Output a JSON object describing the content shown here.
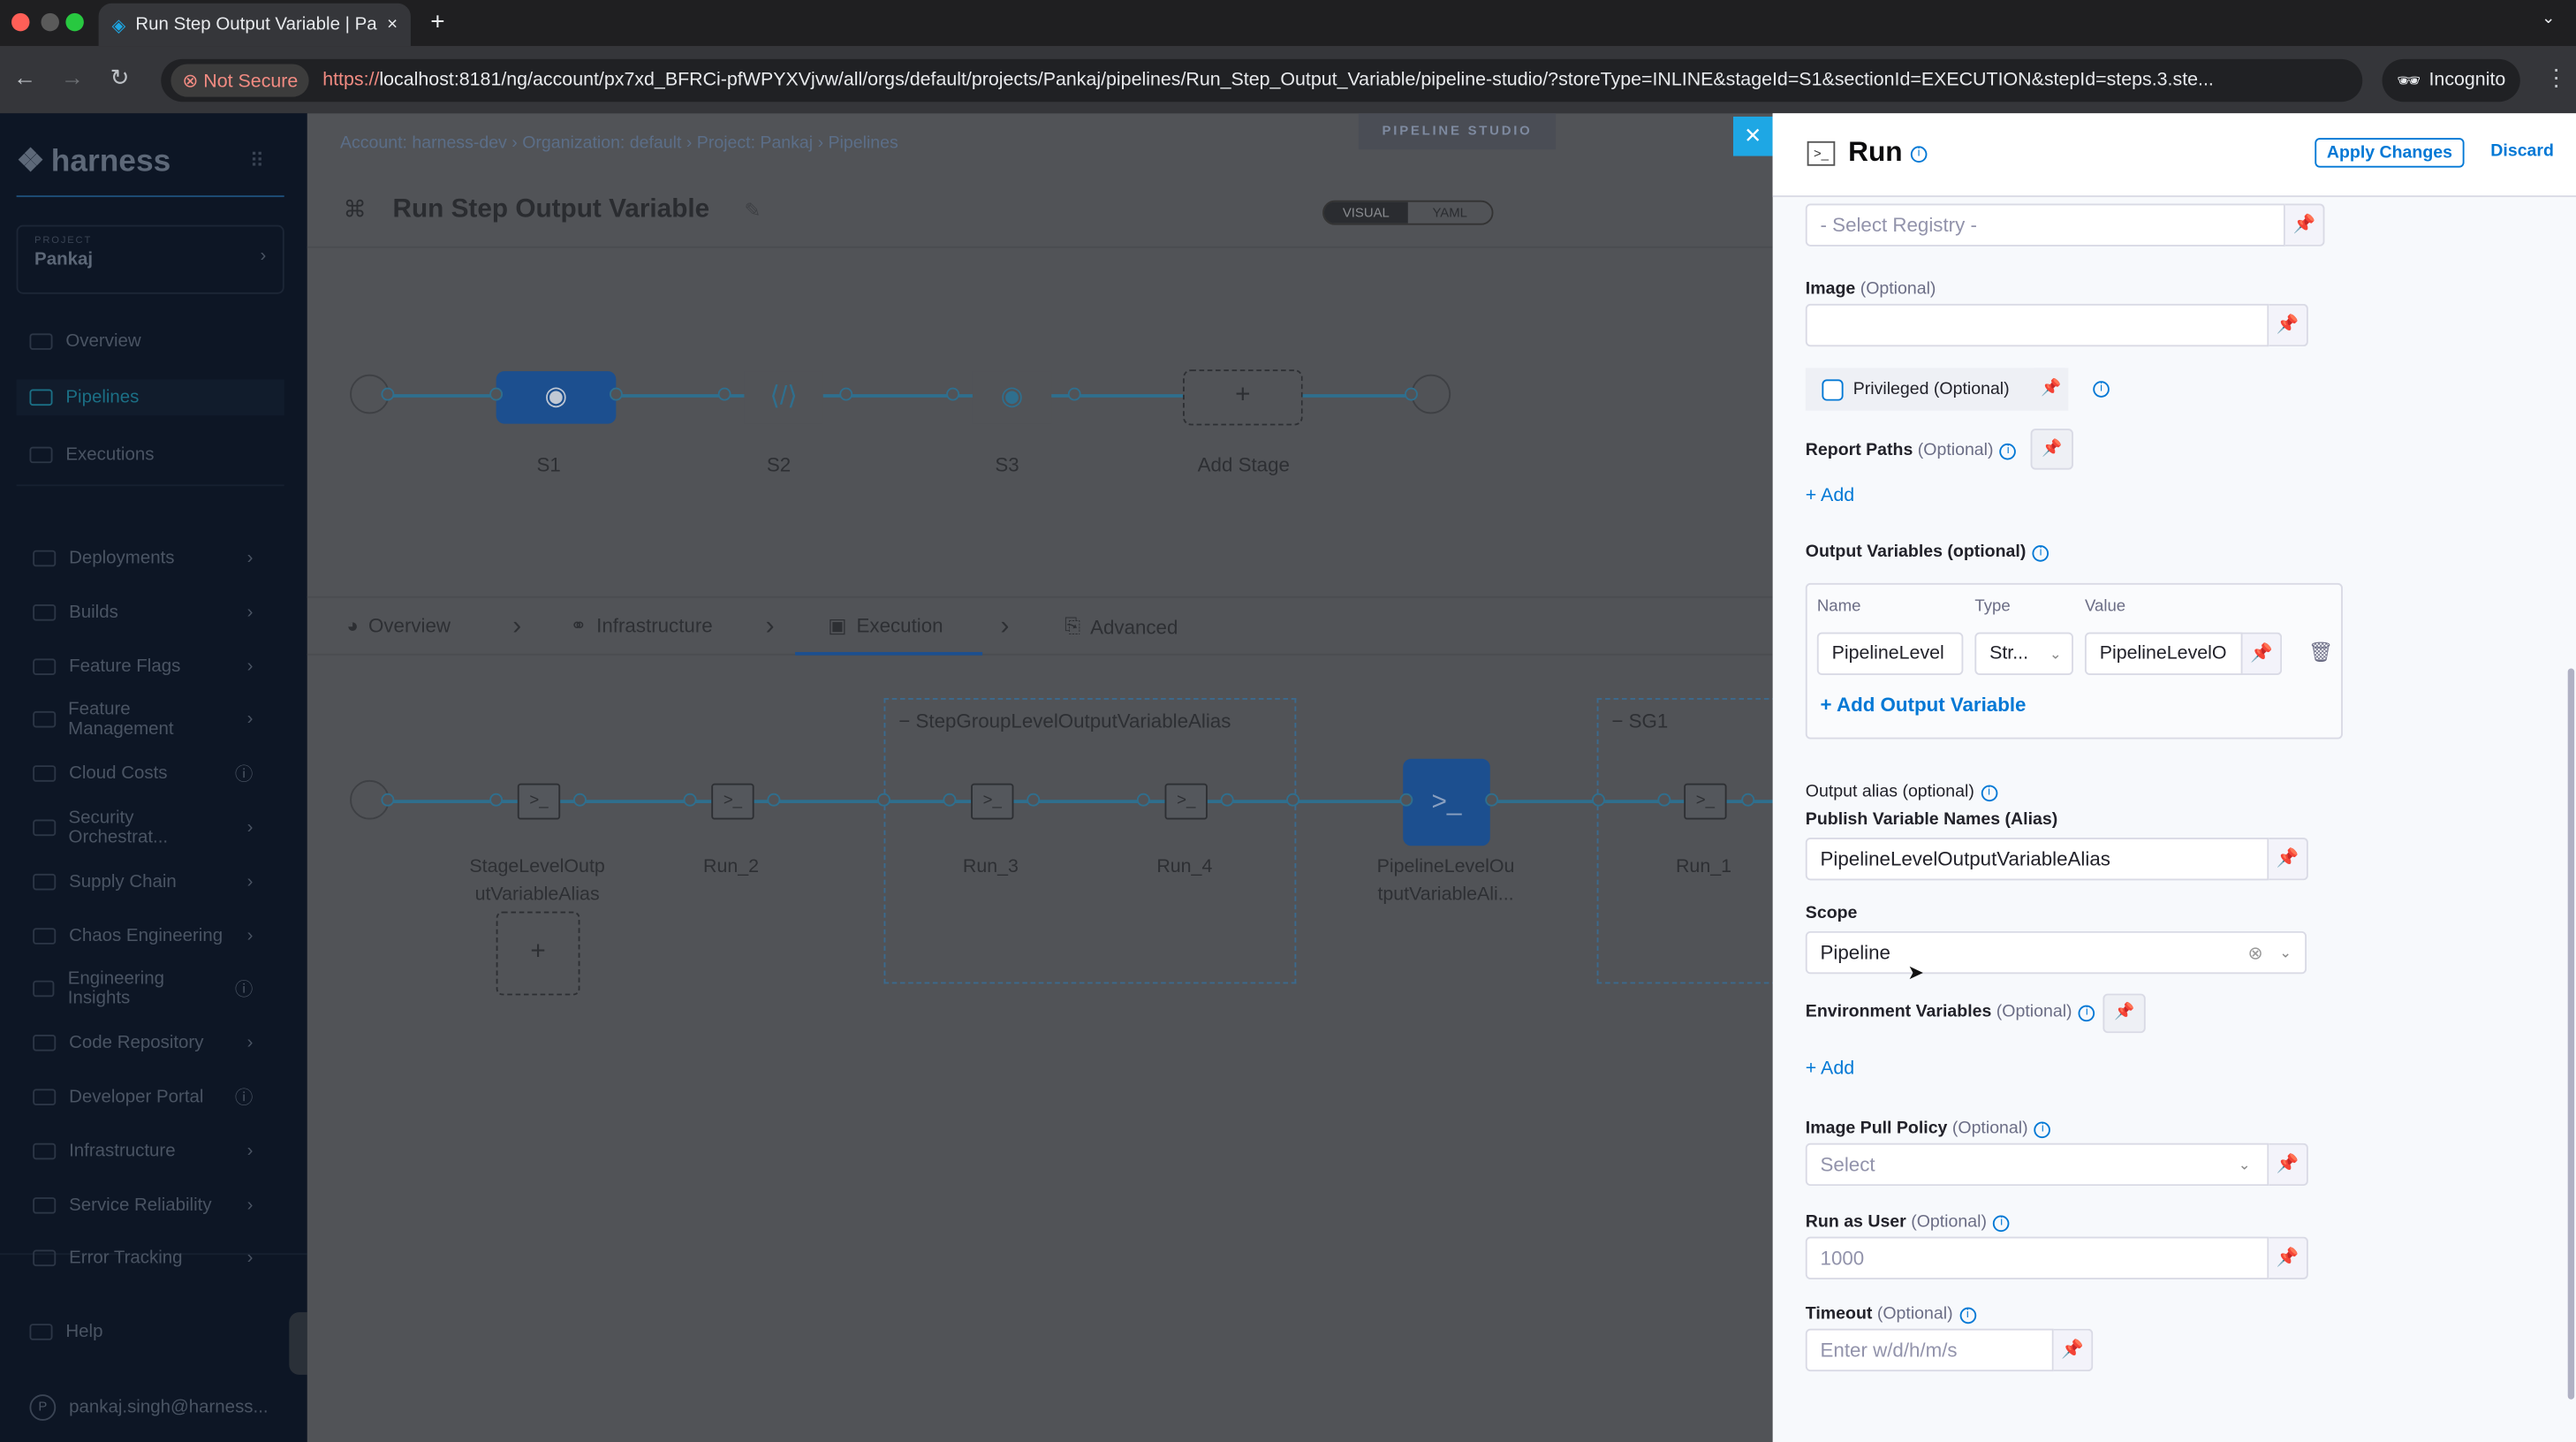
{
  "browser": {
    "tab_title": "Run Step Output Variable | Pa",
    "not_secure": "Not Secure",
    "url_scheme": "https://",
    "url_rest": "localhost:8181/ng/account/px7xd_BFRCi-pfWPYXVjvw/all/orgs/default/projects/Pankaj/pipelines/Run_Step_Output_Variable/pipeline-studio/?storeType=INLINE&stageId=S1&sectionId=EXECUTION&stepId=steps.3.ste...",
    "incognito": "Incognito"
  },
  "sidebar": {
    "logo": "harness",
    "project_label": "PROJECT",
    "project": "Pankaj",
    "top_items": [
      {
        "label": "Overview"
      },
      {
        "label": "Pipelines",
        "active": true
      },
      {
        "label": "Executions"
      }
    ],
    "modules": [
      {
        "label": "Deployments",
        "icon": "chevron"
      },
      {
        "label": "Builds",
        "icon": "chevron"
      },
      {
        "label": "Feature Flags",
        "icon": "chevron"
      },
      {
        "label": "Feature Management",
        "icon": "chevron"
      },
      {
        "label": "Cloud Costs",
        "icon": "info"
      },
      {
        "label": "Security Orchestrat...",
        "icon": "chevron"
      },
      {
        "label": "Supply Chain",
        "icon": "chevron"
      },
      {
        "label": "Chaos Engineering",
        "icon": "chevron"
      },
      {
        "label": "Engineering Insights",
        "icon": "info"
      },
      {
        "label": "Code Repository",
        "icon": "chevron"
      },
      {
        "label": "Developer Portal",
        "icon": "info"
      },
      {
        "label": "Infrastructure",
        "icon": "chevron"
      },
      {
        "label": "Service Reliability",
        "icon": "chevron"
      },
      {
        "label": "Error Tracking",
        "icon": "chevron"
      }
    ],
    "help": "Help",
    "user_initial": "P",
    "user": "pankaj.singh@harness..."
  },
  "main": {
    "breadcrumbs": [
      "Account: harness-dev",
      "Organization: default",
      "Project: Pankaj",
      "Pipelines"
    ],
    "studio_badge": "PIPELINE STUDIO",
    "title": "Run Step Output Variable",
    "view_toggle": {
      "visual": "VISUAL",
      "yaml": "YAML",
      "selected": "VISUAL"
    },
    "stages": [
      {
        "label": "S1",
        "selected": true
      },
      {
        "label": "S2"
      },
      {
        "label": "S3"
      },
      {
        "label": "Add Stage"
      }
    ],
    "stage_tabs": [
      {
        "label": "Overview"
      },
      {
        "label": "Infrastructure"
      },
      {
        "label": "Execution",
        "active": true
      },
      {
        "label": "Advanced"
      }
    ],
    "steps": {
      "s1": "StageLevelOutp",
      "s1b": "utVariableAlias",
      "s2": "Run_2",
      "group1": "StepGroupLevelOutputVariableAlias",
      "s3": "Run_3",
      "s4": "Run_4",
      "s5": "PipelineLevelOu",
      "s5b": "tputVariableAli...",
      "group2": "SG1",
      "s6": "Run_1"
    }
  },
  "panel": {
    "title": "Run",
    "apply": "Apply Changes",
    "discard": "Discard",
    "registry_placeholder": "- Select Registry -",
    "image_label": "Image",
    "optional": "(Optional)",
    "image_value": "",
    "privileged_label": "Privileged (Optional)",
    "privileged_checked": false,
    "report_paths_label": "Report Paths",
    "add": "+ Add",
    "output_vars_label": "Output Variables (optional)",
    "output_vars_cols": [
      "Name",
      "Type",
      "Value"
    ],
    "output_vars_rows": [
      {
        "name": "PipelineLevel",
        "type": "Str...",
        "value": "PipelineLevelO"
      }
    ],
    "add_output_var": "+ Add Output Variable",
    "output_alias_label": "Output alias (optional)",
    "publish_label": "Publish Variable Names (Alias)",
    "publish_value": "PipelineLevelOutputVariableAlias",
    "scope_label": "Scope",
    "scope_value": "Pipeline",
    "env_vars_label": "Environment Variables",
    "pull_policy_label": "Image Pull Policy",
    "pull_policy_placeholder": "Select",
    "run_as_user_label": "Run as User",
    "run_as_user_placeholder": "1000",
    "timeout_label": "Timeout",
    "timeout_placeholder": "Enter w/d/h/m/s"
  },
  "colors": {
    "accent": "#0278d5",
    "sidebar_bg": "#0d1625",
    "overlay": "#515357"
  }
}
